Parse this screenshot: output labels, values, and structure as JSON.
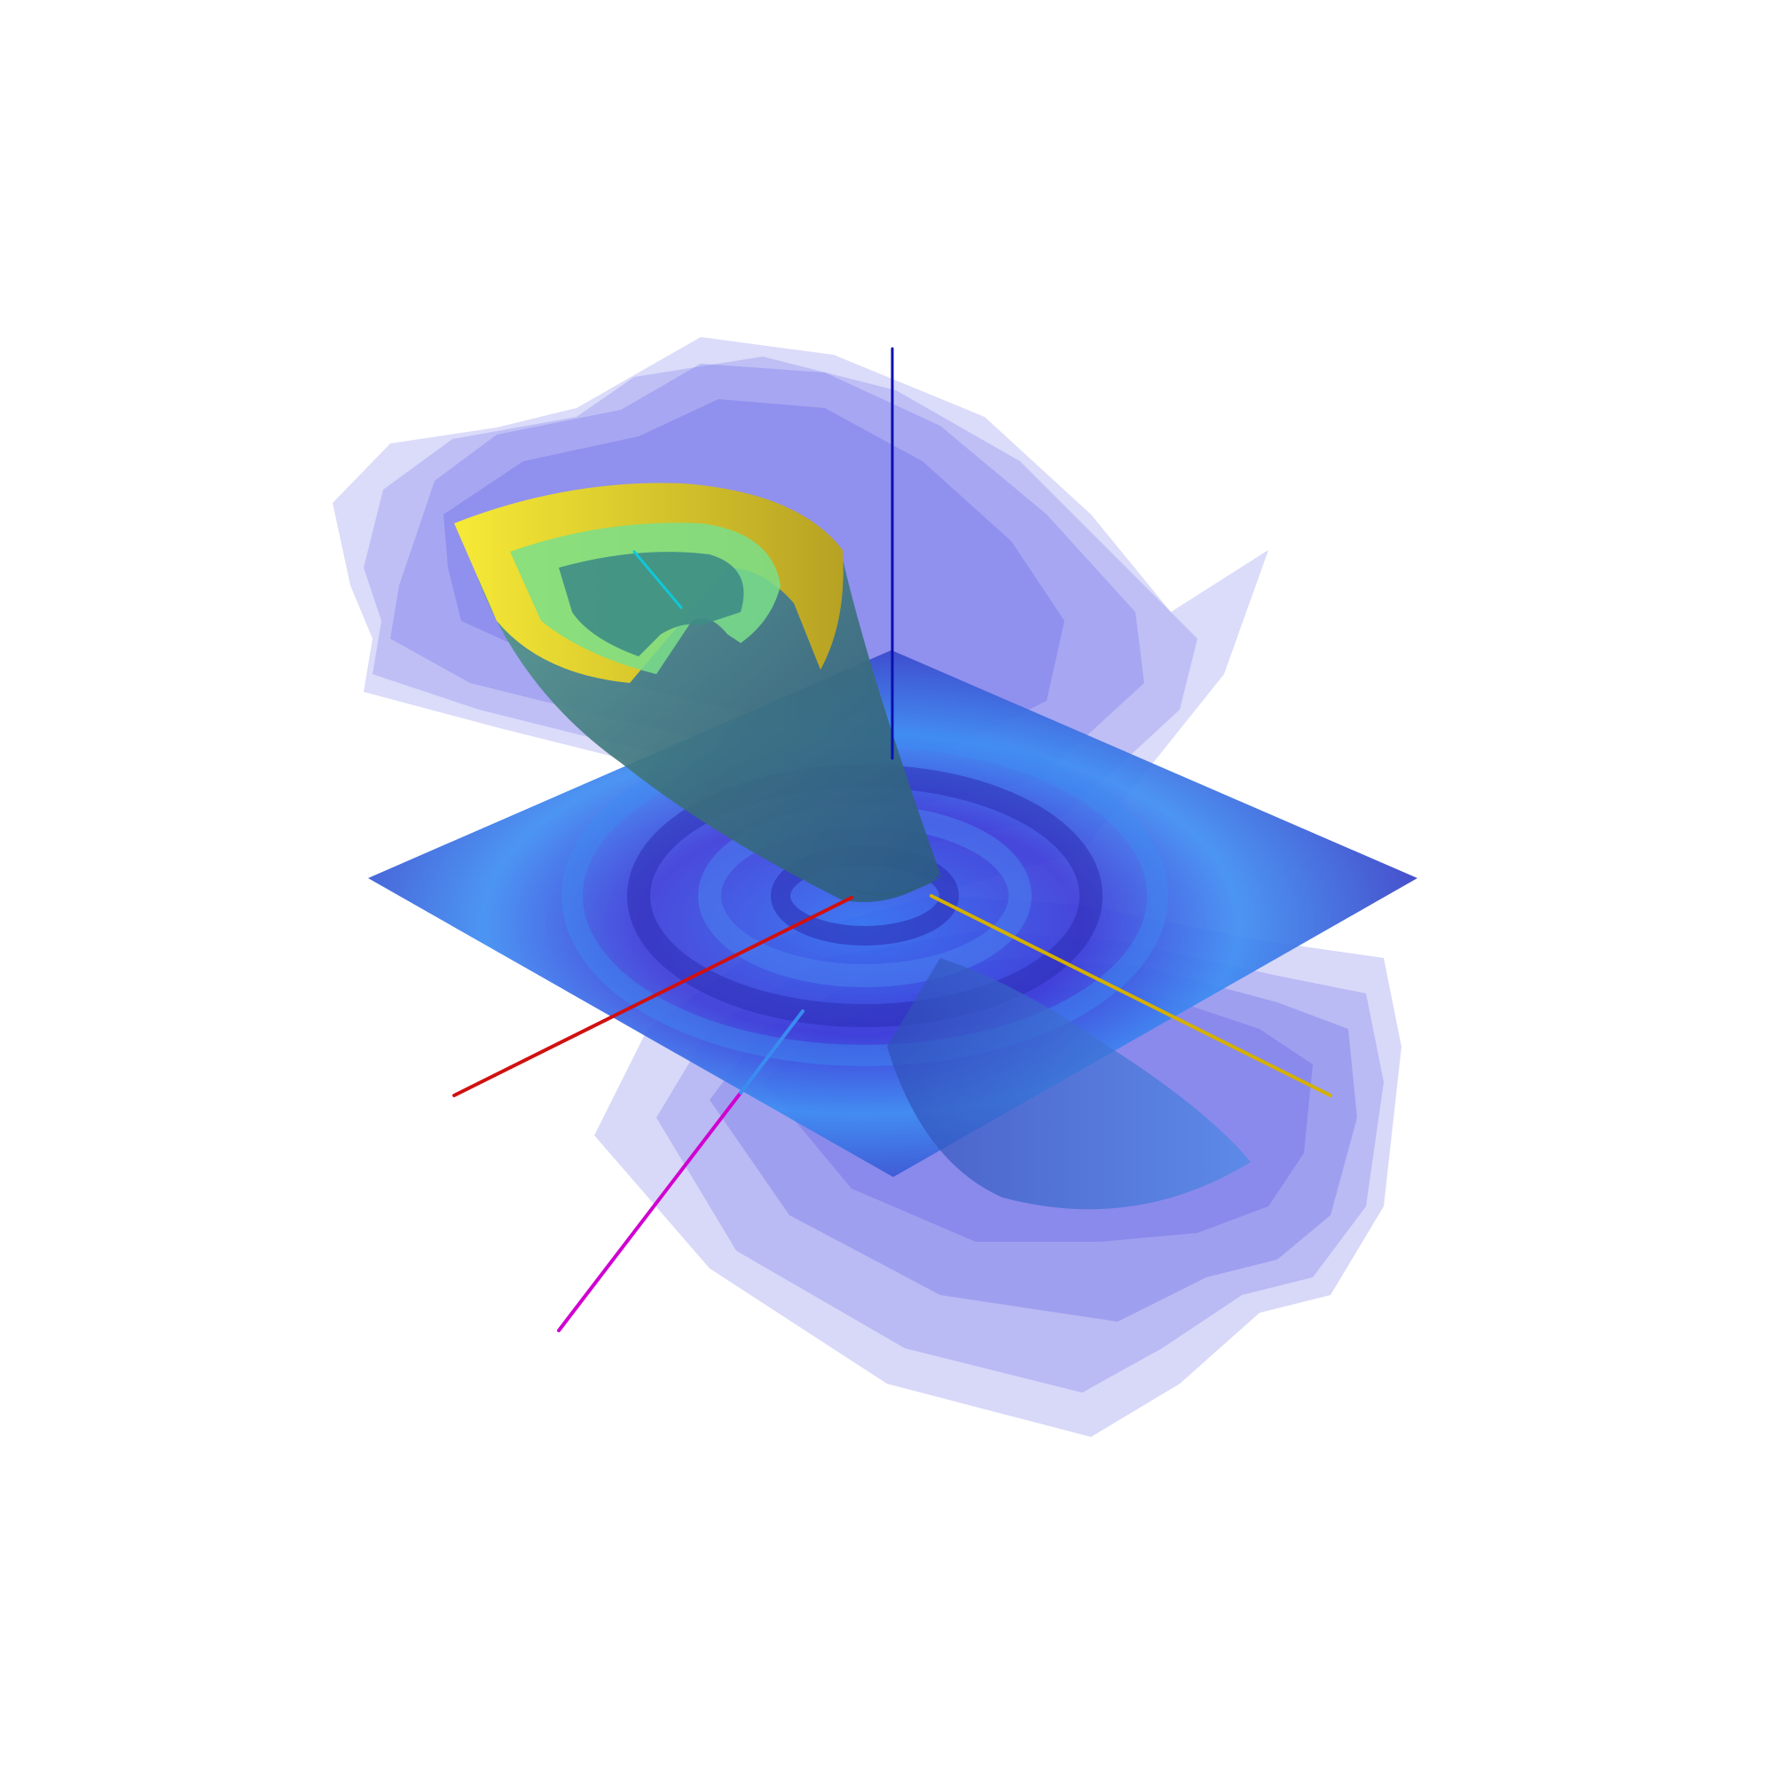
{
  "scene": {
    "background_color": "#ffffff",
    "axis_colors": {
      "x_axis": "#d01010",
      "y_axis": "#d4b000",
      "z_axis": "#0a10b0",
      "diagonal_axis": "#d000d0",
      "inner_axis": "#10c8d8"
    },
    "isosurface_colors": {
      "outer_shells": "#5a5ae6",
      "shell_opacity": 0.28,
      "funnel_outer": "#f2e53a",
      "funnel_inner": "#7adf8a",
      "funnel_stem": "#3f7f86",
      "slice_plane_dark": "#3a32d6",
      "slice_plane_light": "#3b8cf0"
    }
  }
}
